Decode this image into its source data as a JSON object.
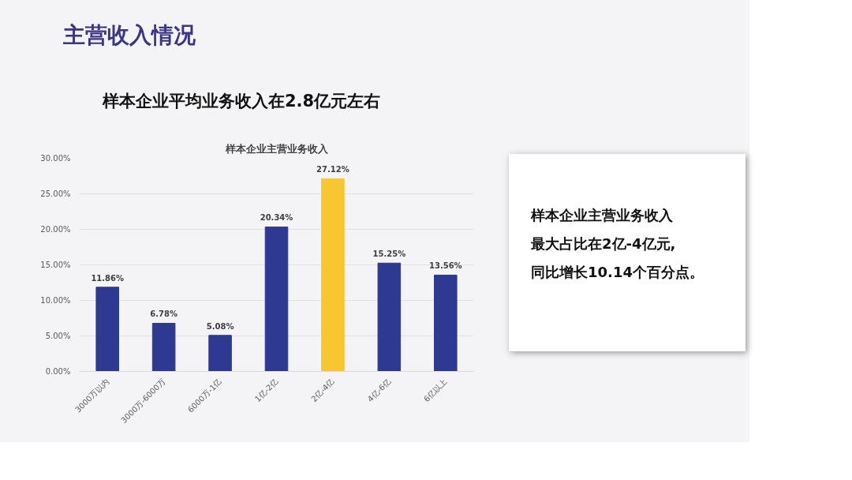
{
  "chart_data": {
    "type": "bar",
    "title": "样本企业主营业务收入",
    "categories": [
      "3000万以内",
      "3000万-6000万",
      "6000万-1亿",
      "1亿-2亿",
      "2亿-4亿",
      "4亿-6亿",
      "6亿以上"
    ],
    "values": [
      11.86,
      6.78,
      5.08,
      20.34,
      27.12,
      15.25,
      13.56
    ],
    "colors": [
      "#2e3a91",
      "#2e3a91",
      "#2e3a91",
      "#2e3a91",
      "#f7c631",
      "#2e3a91",
      "#2e3a91"
    ],
    "value_labels": [
      "11.86%",
      "6.78%",
      "5.08%",
      "20.34%",
      "27.12%",
      "15.25%",
      "13.56%"
    ],
    "ylim": [
      0,
      30
    ],
    "yticks": [
      {
        "value": 0,
        "label": "0.00%"
      },
      {
        "value": 5,
        "label": "5.00%"
      },
      {
        "value": 10,
        "label": "10.00%"
      },
      {
        "value": 15,
        "label": "15.00%"
      },
      {
        "value": 20,
        "label": "20.00%"
      },
      {
        "value": 25,
        "label": "25.00%"
      },
      {
        "value": 30,
        "label": "30.00%"
      }
    ],
    "grid": "y",
    "annotations": [
      "主营收入情况",
      "样本企业平均业务收入在2.8亿元左右",
      "样本企业主营业务收入",
      "最大占比在2亿-4亿元,",
      "同比增长10.14个百分点。"
    ]
  }
}
